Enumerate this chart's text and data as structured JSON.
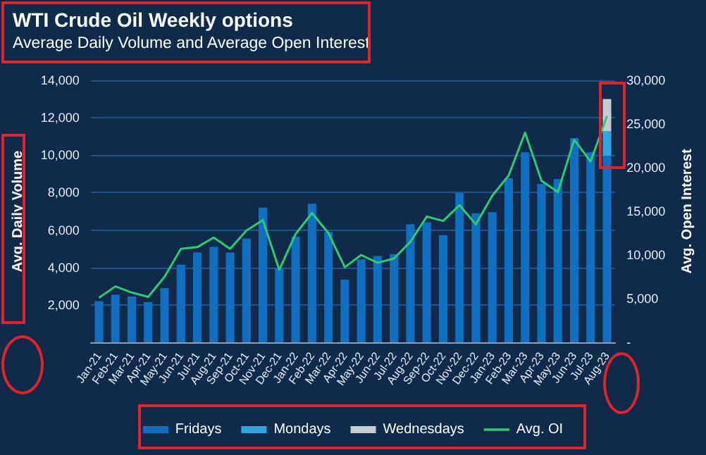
{
  "chart_data": {
    "type": "bar",
    "title": "WTI Crude Oil Weekly options",
    "subtitle": "Average Daily Volume and Average Open Interest",
    "ylabel": "Avg. Daily Volume",
    "y2label": "Avg. Open Interest",
    "categories": [
      "Jan-21",
      "Feb-21",
      "Mar-21",
      "Apr-21",
      "May-21",
      "Jun-21",
      "Jul-21",
      "Aug-21",
      "Sep-21",
      "Oct-21",
      "Nov-21",
      "Dec-21",
      "Jan-22",
      "Feb-22",
      "Mar-22",
      "Apr-22",
      "May-22",
      "Jun-22",
      "Jul-22",
      "Aug-22",
      "Sep-22",
      "Oct-22",
      "Nov-22",
      "Dec-22",
      "Jan-23",
      "Feb-23",
      "Mar-23",
      "Apr-23",
      "May-23",
      "Jun-23",
      "Jul-23",
      "Aug-23"
    ],
    "stacked": true,
    "series": [
      {
        "name": "Fridays",
        "color": "#0f6fc0",
        "values": [
          2200,
          2550,
          2450,
          2150,
          2900,
          4150,
          4800,
          5100,
          4800,
          5550,
          7200,
          3950,
          5650,
          7400,
          5900,
          3350,
          4430,
          4610,
          4710,
          6300,
          6420,
          5720,
          7980,
          6900,
          6950,
          8770,
          10150,
          8460,
          8720,
          10910,
          10150,
          9970
        ]
      },
      {
        "name": "Mondays",
        "color": "#2ea8e0",
        "values": [
          null,
          null,
          null,
          null,
          null,
          null,
          null,
          null,
          null,
          null,
          null,
          null,
          null,
          null,
          null,
          null,
          null,
          null,
          null,
          null,
          null,
          null,
          null,
          null,
          null,
          null,
          null,
          null,
          null,
          null,
          null,
          1310
        ]
      },
      {
        "name": "Wednesdays",
        "color": "#c8ccd2",
        "values": [
          null,
          null,
          null,
          null,
          null,
          null,
          null,
          null,
          null,
          null,
          null,
          null,
          null,
          null,
          null,
          null,
          null,
          null,
          null,
          null,
          null,
          null,
          null,
          null,
          null,
          null,
          null,
          null,
          null,
          null,
          null,
          1720
        ]
      },
      {
        "name": "Avg. OI",
        "type": "line",
        "axis": "y2",
        "color": "#2ecc71",
        "values": [
          5100,
          6400,
          5700,
          5200,
          7500,
          10700,
          10900,
          12000,
          10700,
          12800,
          14000,
          8300,
          12400,
          14800,
          12500,
          8600,
          10000,
          9100,
          9600,
          11500,
          14400,
          13900,
          15700,
          13500,
          16800,
          19100,
          24000,
          18500,
          17200,
          23200,
          20700,
          25900
        ]
      }
    ],
    "ylim": [
      0,
      14000
    ],
    "yticks": [
      {
        "value": 2000,
        "label": "2,000"
      },
      {
        "value": 4000,
        "label": "4,000"
      },
      {
        "value": 6000,
        "label": "6,000"
      },
      {
        "value": 8000,
        "label": "8,000"
      },
      {
        "value": 10000,
        "label": "10,000"
      },
      {
        "value": 12000,
        "label": "12,000"
      },
      {
        "value": 14000,
        "label": "14,000"
      }
    ],
    "y2lim": [
      0,
      30000
    ],
    "y2ticks": [
      {
        "value": 0,
        "label": "-"
      },
      {
        "value": 5000,
        "label": "5,000"
      },
      {
        "value": 10000,
        "label": "10,000"
      },
      {
        "value": 15000,
        "label": "15,000"
      },
      {
        "value": 20000,
        "label": "20,000"
      },
      {
        "value": 25000,
        "label": "25,000"
      },
      {
        "value": 30000,
        "label": "30,000"
      }
    ],
    "grid": "y",
    "legend": "bottom",
    "marker": "none",
    "line_style": "solid"
  }
}
